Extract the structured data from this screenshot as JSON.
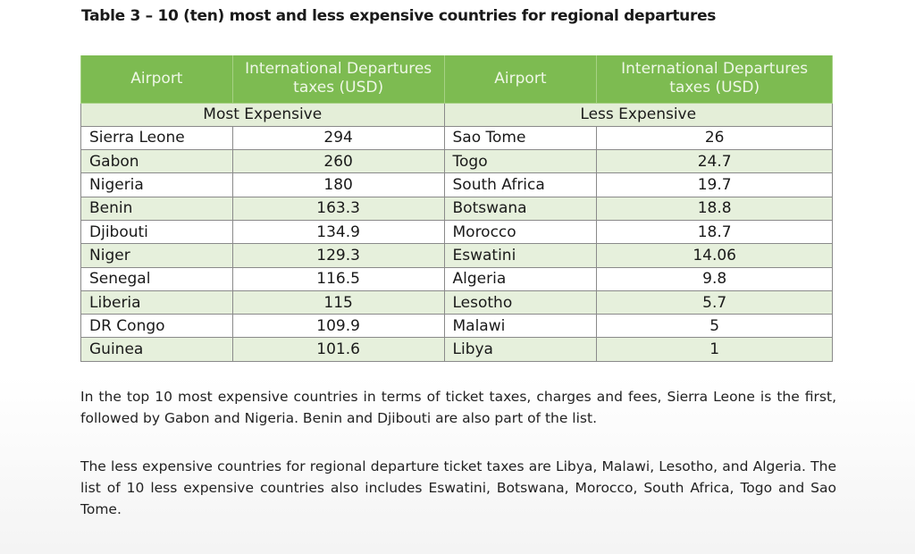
{
  "title": "Table 3 – 10 (ten) most and less expensive countries for regional departures",
  "headers": {
    "airport": "Airport",
    "tax_left": "International Departures taxes (USD)",
    "tax_right": "International Departures taxes (USD)"
  },
  "sections": {
    "most": "Most Expensive",
    "less": "Less Expensive"
  },
  "rows": [
    {
      "most": "Sierra Leone",
      "most_tax": "294",
      "less": "Sao Tome",
      "less_tax": "26"
    },
    {
      "most": "Gabon",
      "most_tax": "260",
      "less": "Togo",
      "less_tax": "24.7"
    },
    {
      "most": "Nigeria",
      "most_tax": "180",
      "less": "South Africa",
      "less_tax": "19.7"
    },
    {
      "most": "Benin",
      "most_tax": "163.3",
      "less": "Botswana",
      "less_tax": "18.8"
    },
    {
      "most": "Djibouti",
      "most_tax": "134.9",
      "less": "Morocco",
      "less_tax": "18.7"
    },
    {
      "most": "Niger",
      "most_tax": "129.3",
      "less": "Eswatini",
      "less_tax": "14.06"
    },
    {
      "most": "Senegal",
      "most_tax": "116.5",
      "less": "Algeria",
      "less_tax": "9.8"
    },
    {
      "most": "Liberia",
      "most_tax": "115",
      "less": "Lesotho",
      "less_tax": "5.7"
    },
    {
      "most": "DR Congo",
      "most_tax": "109.9",
      "less": "Malawi",
      "less_tax": "5"
    },
    {
      "most": "Guinea",
      "most_tax": "101.6",
      "less": "Libya",
      "less_tax": "1"
    }
  ],
  "paragraphs": [
    "In the top 10 most expensive countries in terms of ticket taxes, charges and fees, Sierra Leone is the first, followed by Gabon and Nigeria. Benin and Djibouti are also part of the list.",
    "The less expensive countries for regional departure ticket taxes are Libya, Malawi, Lesotho, and Algeria. The list of 10 less expensive countries also includes Eswatini, Botswana, Morocco, South Africa, Togo and Sao Tome."
  ]
}
